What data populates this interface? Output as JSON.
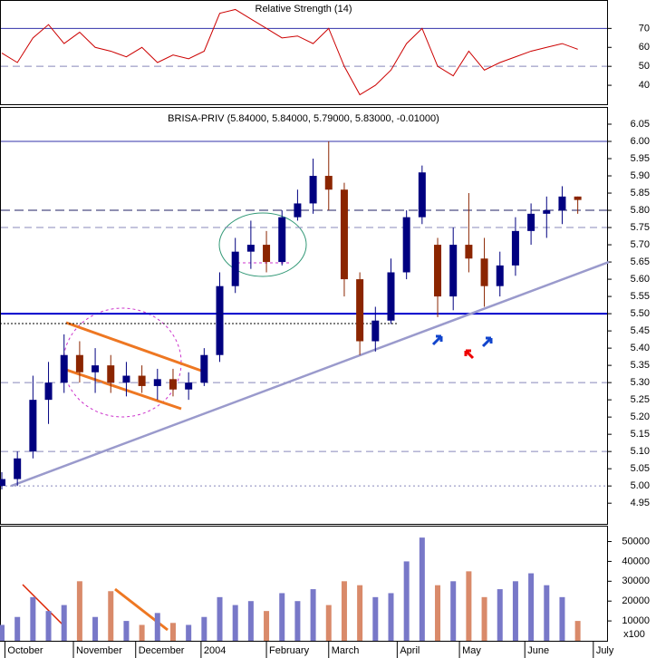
{
  "chart_data": [
    {
      "type": "line",
      "title": "Relative Strength (14)",
      "color": "#cc0000",
      "x": [
        0,
        5,
        10,
        15,
        20,
        25,
        30,
        35,
        40,
        45,
        50,
        55,
        60,
        65,
        70,
        75,
        80,
        85,
        90,
        95,
        100,
        105,
        110,
        115,
        120,
        125,
        130,
        135,
        140,
        145,
        150,
        155,
        160,
        165,
        170,
        175,
        180,
        185
      ],
      "values": [
        57,
        52,
        65,
        72,
        62,
        68,
        60,
        58,
        55,
        60,
        52,
        56,
        54,
        58,
        78,
        80,
        75,
        70,
        65,
        66,
        62,
        70,
        50,
        35,
        40,
        48,
        62,
        70,
        50,
        45,
        58,
        48,
        52,
        55,
        58,
        60,
        62,
        59
      ],
      "xlim": [
        0,
        195
      ],
      "ylim": [
        30,
        85
      ],
      "yticks": [
        40,
        50,
        60,
        70
      ],
      "levels": [
        {
          "value": 70,
          "style": "solid"
        },
        {
          "value": 50,
          "style": "dashed"
        }
      ]
    },
    {
      "type": "candlestick",
      "title": "BRISA-PRIV (5.84000, 5.84000, 5.79000, 5.83000, -0.01000)",
      "up_color": "#000080",
      "down_color": "#8b2500",
      "x": [
        0,
        5,
        10,
        15,
        20,
        25,
        30,
        35,
        40,
        45,
        50,
        55,
        60,
        65,
        70,
        75,
        80,
        85,
        90,
        95,
        100,
        105,
        110,
        115,
        120,
        125,
        130,
        135,
        140,
        145,
        150,
        155,
        160,
        165,
        170,
        175,
        180,
        185
      ],
      "open": [
        5.0,
        5.02,
        5.1,
        5.25,
        5.3,
        5.38,
        5.33,
        5.35,
        5.3,
        5.32,
        5.29,
        5.31,
        5.28,
        5.3,
        5.38,
        5.58,
        5.68,
        5.7,
        5.65,
        5.78,
        5.82,
        5.9,
        5.86,
        5.6,
        5.42,
        5.48,
        5.62,
        5.78,
        5.7,
        5.55,
        5.7,
        5.66,
        5.58,
        5.64,
        5.74,
        5.79,
        5.8,
        5.84
      ],
      "high": [
        5.04,
        5.1,
        5.32,
        5.36,
        5.44,
        5.42,
        5.4,
        5.38,
        5.36,
        5.35,
        5.34,
        5.34,
        5.33,
        5.4,
        5.62,
        5.72,
        5.77,
        5.74,
        5.8,
        5.86,
        5.95,
        6.0,
        5.88,
        5.62,
        5.52,
        5.66,
        5.8,
        5.93,
        5.72,
        5.75,
        5.85,
        5.72,
        5.68,
        5.78,
        5.82,
        5.84,
        5.87,
        5.84
      ],
      "low": [
        4.99,
        5.0,
        5.08,
        5.18,
        5.27,
        5.3,
        5.27,
        5.27,
        5.26,
        5.27,
        5.25,
        5.26,
        5.25,
        5.29,
        5.36,
        5.56,
        5.63,
        5.62,
        5.64,
        5.77,
        5.79,
        5.8,
        5.55,
        5.38,
        5.39,
        5.47,
        5.6,
        5.76,
        5.49,
        5.51,
        5.62,
        5.52,
        5.55,
        5.61,
        5.7,
        5.72,
        5.76,
        5.79
      ],
      "close": [
        5.02,
        5.08,
        5.25,
        5.3,
        5.38,
        5.33,
        5.35,
        5.3,
        5.32,
        5.29,
        5.31,
        5.28,
        5.3,
        5.38,
        5.58,
        5.68,
        5.7,
        5.65,
        5.78,
        5.82,
        5.9,
        5.86,
        5.6,
        5.42,
        5.48,
        5.62,
        5.78,
        5.91,
        5.55,
        5.7,
        5.66,
        5.58,
        5.64,
        5.74,
        5.79,
        5.8,
        5.84,
        5.83
      ],
      "xlim": [
        0,
        195
      ],
      "ylim": [
        4.89,
        6.1
      ],
      "yticks": [
        {
          "value": 4.95,
          "label": "4.95"
        },
        {
          "value": 5.0,
          "label": "5.00"
        },
        {
          "value": 5.05,
          "label": "5.05"
        },
        {
          "value": 5.1,
          "label": "5.10"
        },
        {
          "value": 5.15,
          "label": "5.15"
        },
        {
          "value": 5.2,
          "label": "5.20"
        },
        {
          "value": 5.25,
          "label": "5.25"
        },
        {
          "value": 5.3,
          "label": "5.30"
        },
        {
          "value": 5.35,
          "label": "5.35"
        },
        {
          "value": 5.4,
          "label": "5.40"
        },
        {
          "value": 5.45,
          "label": "5.45"
        },
        {
          "value": 5.5,
          "label": "5.50"
        },
        {
          "value": 5.55,
          "label": "5.55"
        },
        {
          "value": 5.6,
          "label": "5.60"
        },
        {
          "value": 5.65,
          "label": "5.65"
        },
        {
          "value": 5.7,
          "label": "5.70"
        },
        {
          "value": 5.75,
          "label": "5.75"
        },
        {
          "value": 5.8,
          "label": "5.80"
        },
        {
          "value": 5.85,
          "label": "5.85"
        },
        {
          "value": 5.9,
          "label": "5.90"
        },
        {
          "value": 5.95,
          "label": "5.95"
        },
        {
          "value": 6.0,
          "label": "6.00"
        },
        {
          "value": 6.05,
          "label": "6.05"
        }
      ],
      "levels": [
        {
          "value": 6.0,
          "style": "solid"
        },
        {
          "value": 5.8,
          "style": "dashed-dark"
        },
        {
          "value": 5.75,
          "style": "dashed"
        },
        {
          "value": 5.5,
          "style": "thick"
        },
        {
          "value": 5.3,
          "style": "dashed"
        },
        {
          "value": 5.1,
          "style": "dashed"
        },
        {
          "value": 5.0,
          "style": "dotted"
        }
      ],
      "trendline": {
        "x": [
          3,
          195
        ],
        "y": [
          5.0,
          5.65
        ],
        "color": "#9a9acc"
      }
    },
    {
      "type": "bar",
      "unit_label": "x100",
      "up_color": "#7878c8",
      "down_color": "#d98a6a",
      "x": [
        0,
        5,
        10,
        15,
        20,
        25,
        30,
        35,
        40,
        45,
        50,
        55,
        60,
        65,
        70,
        75,
        80,
        85,
        90,
        95,
        100,
        105,
        110,
        115,
        120,
        125,
        130,
        135,
        140,
        145,
        150,
        155,
        160,
        165,
        170,
        175,
        180,
        185
      ],
      "values": [
        8000,
        12000,
        22000,
        15000,
        18000,
        30000,
        12000,
        25000,
        10000,
        8000,
        14000,
        9000,
        8000,
        12000,
        22000,
        18000,
        20000,
        15000,
        24000,
        20000,
        26000,
        18000,
        30000,
        28000,
        22000,
        24000,
        40000,
        52000,
        28000,
        30000,
        35000,
        22000,
        26000,
        30000,
        34000,
        28000,
        22000,
        10000
      ],
      "xlim": [
        0,
        195
      ],
      "ylim": [
        0,
        58000
      ],
      "yticks": [
        10000,
        20000,
        30000,
        40000,
        50000
      ],
      "xticks": [
        {
          "value": 1,
          "label": "October"
        },
        {
          "value": 23,
          "label": "November"
        },
        {
          "value": 43,
          "label": "December"
        },
        {
          "value": 64,
          "label": "2004"
        },
        {
          "value": 85,
          "label": "February"
        },
        {
          "value": 105,
          "label": "March"
        },
        {
          "value": 127,
          "label": "April"
        },
        {
          "value": 147,
          "label": "May"
        },
        {
          "value": 168,
          "label": "June"
        },
        {
          "value": 190,
          "label": "July"
        }
      ]
    }
  ]
}
